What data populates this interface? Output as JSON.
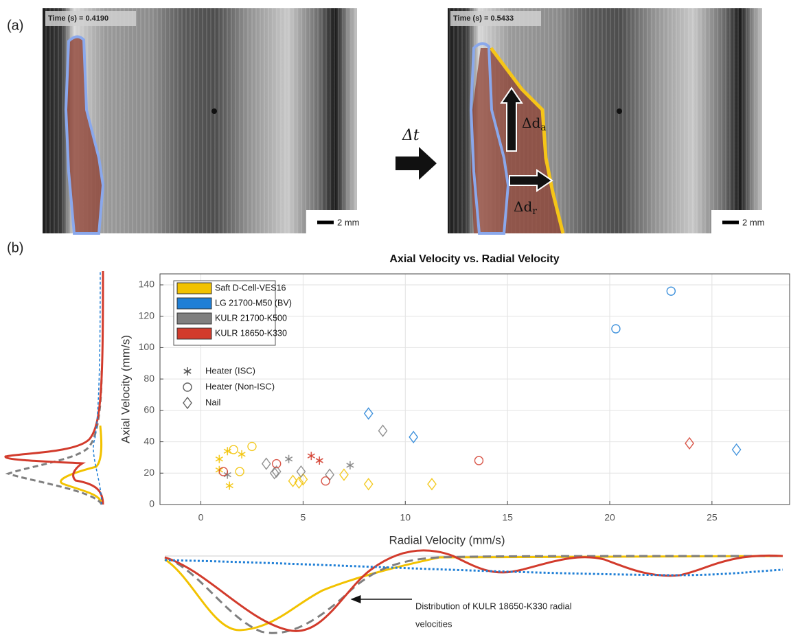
{
  "panels": {
    "a": {
      "label": "(a)",
      "left_time": "Time (s) = 0.4190",
      "right_time": "Time (s) = 0.5433",
      "left_scale": "2 mm",
      "right_scale": "2 mm",
      "delta_t": "Δt",
      "delta_axial": {
        "main": "Δd",
        "sub": "a"
      },
      "delta_radial": {
        "main": "Δd",
        "sub": "r"
      }
    },
    "b": {
      "label": "(b)",
      "annotation": [
        "Distribution of KULR 18650-K330 radial",
        "velocities"
      ]
    }
  },
  "chart_data": {
    "type": "scatter",
    "title": "Axial Velocity vs. Radial Velocity",
    "x_label": "Radial Velocity (mm/s)",
    "y_label": "Axial Velocity (mm/s)",
    "xlim": [
      -2,
      28.8
    ],
    "ylim": [
      0,
      147
    ],
    "xticks": [
      0,
      5,
      10,
      15,
      20,
      25
    ],
    "yticks": [
      0,
      20,
      40,
      60,
      80,
      100,
      120,
      140
    ],
    "grid": true,
    "legend_position": "upper left",
    "marker_legend": [
      {
        "name": "Heater (ISC)",
        "marker": "star"
      },
      {
        "name": "Heater (Non-ISC)",
        "marker": "circle"
      },
      {
        "name": "Nail",
        "marker": "diamond"
      }
    ],
    "series": [
      {
        "name": "Saft D-Cell-VES16",
        "color": "#f2c200",
        "x": [
          0.9,
          1.3,
          2.0,
          1.4,
          0.9,
          1.6,
          2.5,
          1.9,
          4.5,
          4.8,
          5.0,
          7.0,
          8.2,
          11.3
        ],
        "values": [
          29,
          34,
          32,
          12,
          22,
          35,
          37,
          21,
          15,
          14,
          16,
          19,
          13,
          13
        ],
        "markers": [
          "star",
          "star",
          "star",
          "star",
          "star",
          "circle",
          "circle",
          "circle",
          "diamond",
          "diamond",
          "diamond",
          "diamond",
          "diamond",
          "diamond"
        ]
      },
      {
        "name": "LG 21700-M50 (BV)",
        "color": "#1f7fd6",
        "x": [
          20.3,
          23.0,
          8.2,
          10.4,
          26.2
        ],
        "values": [
          112,
          136,
          58,
          43,
          35
        ],
        "markers": [
          "circle",
          "circle",
          "diamond",
          "diamond",
          "diamond"
        ]
      },
      {
        "name": "KULR 21700-K500",
        "color": "#7f7f7f",
        "x": [
          4.3,
          7.3,
          1.3,
          3.2,
          3.6,
          3.7,
          4.9,
          6.3,
          8.9
        ],
        "values": [
          29,
          25,
          19,
          26,
          20,
          21,
          21,
          19,
          47
        ],
        "markers": [
          "star",
          "star",
          "star",
          "diamond",
          "diamond",
          "diamond",
          "diamond",
          "diamond",
          "diamond"
        ]
      },
      {
        "name": "KULR 18650-K330",
        "color": "#d23b2c",
        "x": [
          5.4,
          5.8,
          1.1,
          3.7,
          6.1,
          13.6,
          23.9
        ],
        "values": [
          31,
          28,
          21,
          26,
          15,
          28,
          39
        ],
        "markers": [
          "star",
          "star",
          "circle",
          "circle",
          "circle",
          "circle",
          "diamond"
        ]
      }
    ]
  }
}
